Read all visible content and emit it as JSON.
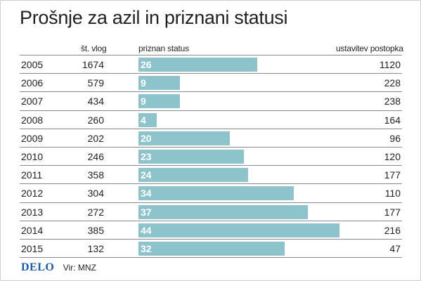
{
  "chart_data": {
    "type": "table",
    "title": "Prošnje za azil in priznani statusi",
    "columns": [
      "",
      "št. vlog",
      "priznan status",
      "ustavitev postopka"
    ],
    "years": [
      "2005",
      "2006",
      "2007",
      "2008",
      "2009",
      "2010",
      "2011",
      "2012",
      "2013",
      "2014",
      "2015"
    ],
    "st_vlog": [
      1674,
      579,
      434,
      260,
      202,
      246,
      358,
      304,
      272,
      385,
      132
    ],
    "priznan_status": [
      26,
      9,
      9,
      4,
      20,
      23,
      24,
      34,
      37,
      44,
      32
    ],
    "ustavitev_postopka": [
      1120,
      228,
      238,
      164,
      96,
      120,
      177,
      110,
      177,
      216,
      47
    ],
    "bar_series": "priznan status",
    "bar_color": "#8fc3cc",
    "bar_label_color": "#ffffff"
  },
  "footer": {
    "logo": "DELO",
    "logo_color": "#1c5aa5",
    "source": "Vir: MNZ"
  }
}
